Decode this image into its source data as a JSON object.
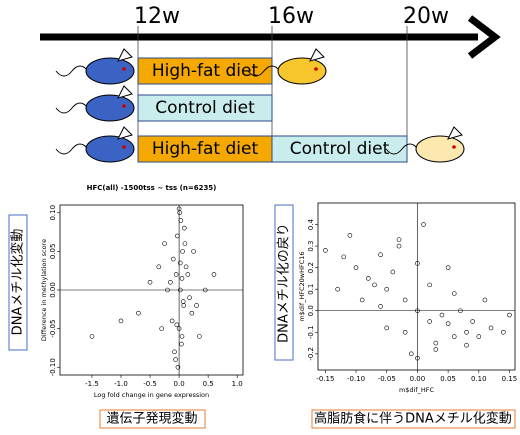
{
  "timeline": {
    "ticks": [
      "12w",
      "16w",
      "20w"
    ],
    "rows": [
      {
        "segments": [
          "High-fat diet"
        ]
      },
      {
        "segments": [
          "Control diet"
        ]
      },
      {
        "segments": [
          "High-fat diet",
          "Control diet"
        ]
      }
    ]
  },
  "chart_data": [
    {
      "type": "scatter",
      "title": "HFC(all) -1500tss ~ tss (n=6235)",
      "x_label": "Log fold change in gene expression",
      "y_label": "Difference in methylation score",
      "annotations": [
        "DNAメチル化変動",
        "遺伝子発現変動"
      ],
      "xlim": [
        -2.05,
        1.1
      ],
      "ylim": [
        -0.11,
        0.11
      ],
      "xticks": [
        {
          "value": -1.5,
          "label": "-1.5"
        },
        {
          "value": -1.0,
          "label": "-1.0"
        },
        {
          "value": -0.5,
          "label": "-0.5"
        },
        {
          "value": 0,
          "label": "0.0"
        },
        {
          "value": 0.5,
          "label": "0.5"
        },
        {
          "value": 1.0,
          "label": "1.0"
        }
      ],
      "yticks": [
        {
          "value": -0.1,
          "label": "-0.10"
        },
        {
          "value": -0.05,
          "label": "-0.05"
        },
        {
          "value": 0,
          "label": "0.00"
        },
        {
          "value": 0.05,
          "label": "0.05"
        },
        {
          "value": 0.1,
          "label": "0.10"
        }
      ],
      "x": [
        0.02,
        -0.05,
        0.08,
        -0.1,
        0.12,
        0.0,
        -0.03,
        0.05,
        -0.15,
        0.18,
        0.03,
        -0.08,
        0.1,
        -0.2,
        0.22,
        0.01,
        -0.02,
        0.06,
        -0.12,
        0.15,
        0.04,
        -0.06,
        0.09,
        -0.35,
        0.3,
        -0.5,
        0.45,
        -0.7,
        -1.0,
        -1.5,
        0.6,
        0.0,
        0.02,
        -0.04,
        0.07,
        -0.3,
        0.25,
        -0.25,
        0.35,
        0.05
      ],
      "values": [
        0.0,
        0.02,
        -0.02,
        0.04,
        0.03,
        -0.05,
        0.07,
        -0.06,
        0.01,
        -0.01,
        0.09,
        -0.08,
        0.06,
        0.0,
        -0.03,
        0.1,
        -0.1,
        0.05,
        -0.04,
        0.02,
        -0.07,
        -0.09,
        0.08,
        0.03,
        -0.02,
        0.01,
        0.0,
        -0.03,
        -0.04,
        -0.06,
        0.02,
        0.105,
        0.035,
        -0.045,
        -0.015,
        -0.05,
        0.05,
        0.06,
        -0.06,
        0.015
      ]
    },
    {
      "type": "scatter",
      "x_label": "m$dif_HFC",
      "y_label": "m$dif_HFC20wHFC16",
      "annotations": [
        "DNAメチル化の戻り",
        "高脂肪食に伴うDNAメチル化変動"
      ],
      "xlim": [
        -0.162,
        0.159
      ],
      "ylim": [
        -0.275,
        0.5
      ],
      "xticks": [
        {
          "value": -0.15,
          "label": "-0.15"
        },
        {
          "value": -0.1,
          "label": "-0.10"
        },
        {
          "value": -0.05,
          "label": "-0.05"
        },
        {
          "value": 0,
          "label": "0.00"
        },
        {
          "value": 0.05,
          "label": "0.05"
        },
        {
          "value": 0.1,
          "label": "0.10"
        },
        {
          "value": 0.15,
          "label": "0.15"
        }
      ],
      "yticks": [
        {
          "value": -0.2,
          "label": "-0.2"
        },
        {
          "value": -0.1,
          "label": "-0.1"
        },
        {
          "value": 0,
          "label": "0.0"
        },
        0.1,
        0.2,
        0.3,
        0.4
      ],
      "x": [
        0,
        -0.02,
        0.02,
        -0.05,
        0.05,
        -0.08,
        0.08,
        -0.1,
        0.1,
        -0.12,
        0.12,
        -0.03,
        0.03,
        -0.06,
        0.06,
        -0.01,
        0.01,
        -0.04,
        0.04,
        -0.07,
        0.07,
        -0.09,
        0.09,
        -0.13,
        0.14,
        0.0,
        -0.02,
        0.02,
        -0.05,
        0.05,
        0.11,
        -0.11,
        0.15,
        -0.15,
        0.0,
        0.03,
        -0.03,
        0.06,
        -0.06,
        0.08
      ],
      "values": [
        0,
        0.05,
        -0.05,
        0.1,
        -0.06,
        0.15,
        -0.1,
        0.2,
        -0.12,
        0.25,
        -0.08,
        0.3,
        -0.15,
        0.02,
        0.08,
        -0.2,
        0.4,
        0.18,
        -0.02,
        0.12,
        0.0,
        0.05,
        -0.05,
        0.1,
        -0.1,
        0.22,
        -0.1,
        0.12,
        -0.08,
        0.2,
        0.05,
        0.35,
        -0.02,
        0.28,
        -0.22,
        -0.18,
        0.33,
        -0.12,
        0.26,
        -0.16
      ]
    }
  ]
}
